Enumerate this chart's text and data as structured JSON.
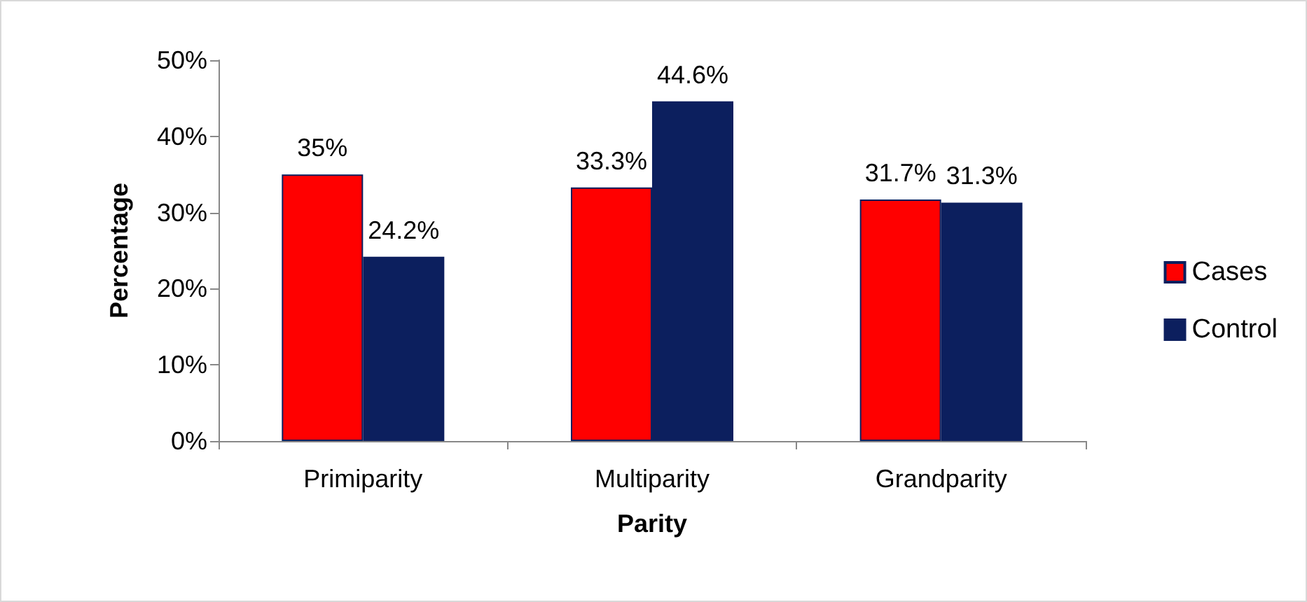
{
  "chart_data": {
    "type": "bar",
    "xlabel": "Parity",
    "ylabel": "Percentage",
    "categories": [
      "Primiparity",
      "Multiparity",
      "Grandparity"
    ],
    "series": [
      {
        "name": "Cases",
        "color": "#ff0000",
        "values": [
          35,
          33.3,
          31.7
        ],
        "value_labels": [
          "35%",
          "33.3%",
          "31.7%"
        ]
      },
      {
        "name": "Control",
        "color": "#0c1f5e",
        "values": [
          24.2,
          44.6,
          31.3
        ],
        "value_labels": [
          "24.2%",
          "44.6%",
          "31.3%"
        ]
      }
    ],
    "ylim": [
      0,
      50
    ],
    "yticks": [
      {
        "value": 0,
        "label": "0%"
      },
      {
        "value": 10,
        "label": "10%"
      },
      {
        "value": 20,
        "label": "20%"
      },
      {
        "value": 30,
        "label": "30%"
      },
      {
        "value": 40,
        "label": "40%"
      },
      {
        "value": 50,
        "label": "50%"
      }
    ],
    "grid": false,
    "legend": "right"
  }
}
